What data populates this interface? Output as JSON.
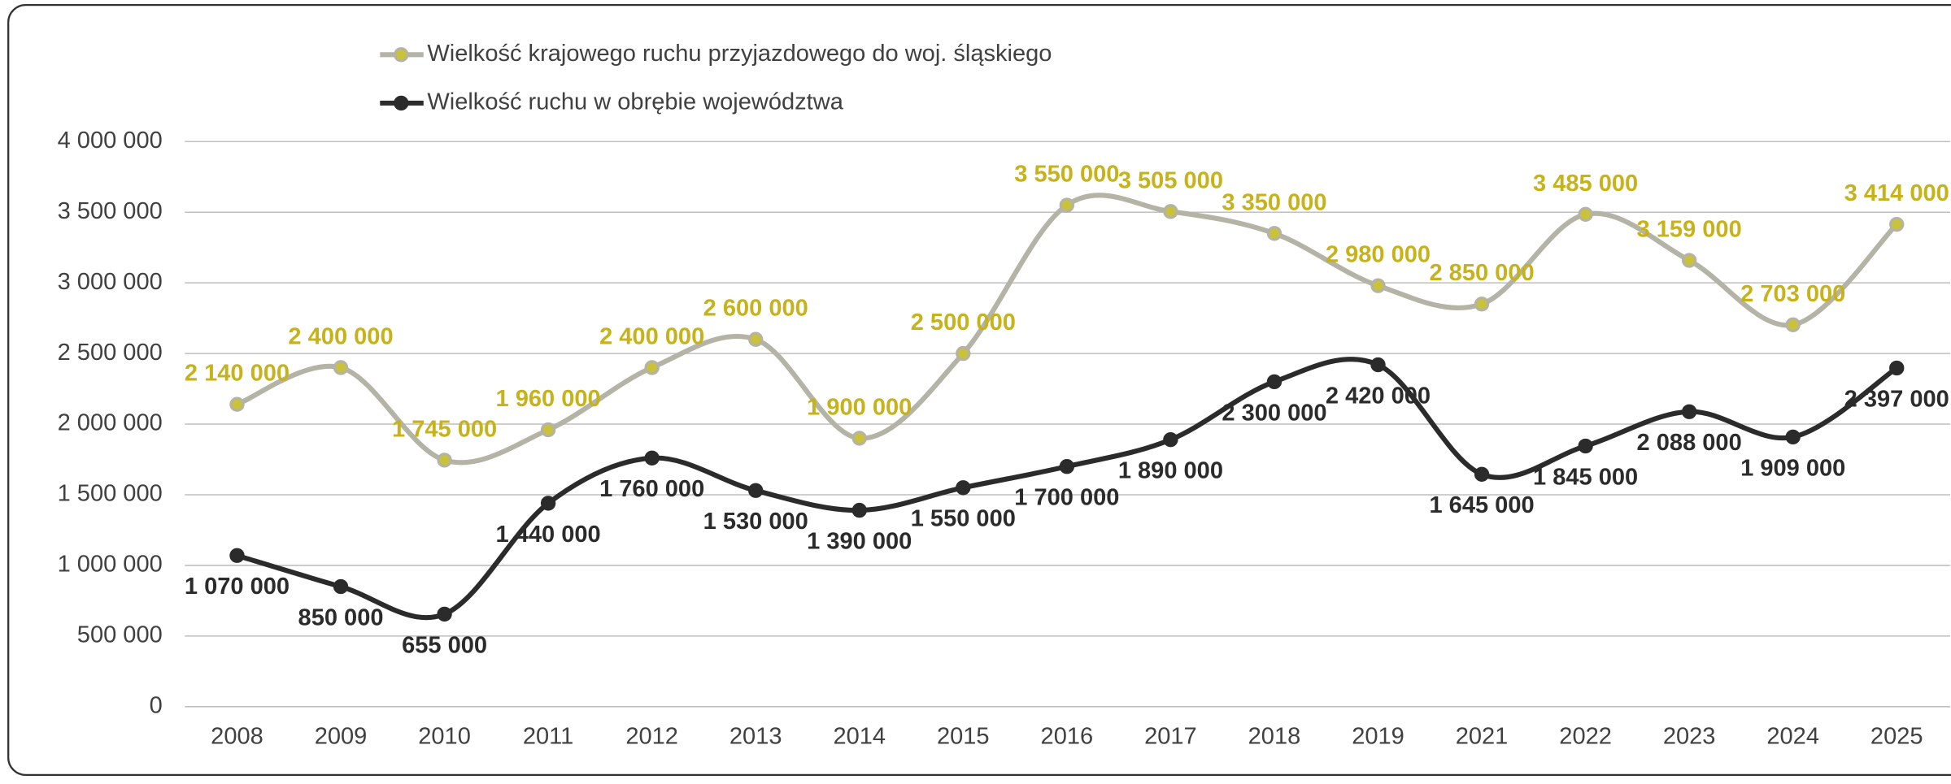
{
  "chart_data": {
    "type": "line",
    "categories": [
      "2008",
      "2009",
      "2010",
      "2011",
      "2012",
      "2013",
      "2014",
      "2015",
      "2016",
      "2017",
      "2018",
      "2019",
      "2021",
      "2022",
      "2023",
      "2024",
      "2025"
    ],
    "series": [
      {
        "name": "Wielkość krajowego ruchu przyjazdowego do woj. śląskiego",
        "color": "#b3b3a6",
        "marker_color": "#c9c23a",
        "label_color": "#c6b31c",
        "values": [
          2140000,
          2400000,
          1745000,
          1960000,
          2400000,
          2600000,
          1900000,
          2500000,
          3550000,
          3505000,
          3350000,
          2980000,
          2850000,
          3485000,
          3159000,
          2703000,
          3414000
        ],
        "value_labels": [
          "2 140 000",
          "2 400 000",
          "1 745 000",
          "1 960 000",
          "2 400 000",
          "2 600 000",
          "1 900 000",
          "2 500 000",
          "3 550 000",
          "3 505 000",
          "3 350 000",
          "2 980 000",
          "2 850 000",
          "3 485 000",
          "3 159 000",
          "2 703 000",
          "3 414 000"
        ]
      },
      {
        "name": "Wielkość ruchu w obrębie województwa",
        "color": "#2b2b2b",
        "marker_color": "#2b2b2b",
        "label_color": "#2b2b2b",
        "values": [
          1070000,
          850000,
          655000,
          1440000,
          1760000,
          1530000,
          1390000,
          1550000,
          1700000,
          1890000,
          2300000,
          2420000,
          1645000,
          1845000,
          2088000,
          1909000,
          2397000
        ],
        "value_labels": [
          "1 070 000",
          "850 000",
          "655 000",
          "1 440 000",
          "1 760 000",
          "1 530 000",
          "1 390 000",
          "1 550 000",
          "1 700 000",
          "1 890 000",
          "2 300 000",
          "2 420 000",
          "1 645 000",
          "1 845 000",
          "2 088 000",
          "1 909 000",
          "2 397 000"
        ]
      }
    ],
    "ylim": [
      0,
      4000000
    ],
    "yticks": [
      0,
      {
        "value": 500000,
        "label": "500 000"
      },
      {
        "value": 1000000,
        "label": "1 000 000"
      },
      {
        "value": 1500000,
        "label": "1 500 000"
      },
      {
        "value": 2000000,
        "label": "2 000 000"
      },
      {
        "value": 2500000,
        "label": "2 500 000"
      },
      {
        "value": 3000000,
        "label": "3 000 000"
      },
      {
        "value": 3500000,
        "label": "3 500 000"
      },
      {
        "value": 4000000,
        "label": "4 000 000"
      }
    ],
    "grid": true,
    "legend": "top"
  }
}
